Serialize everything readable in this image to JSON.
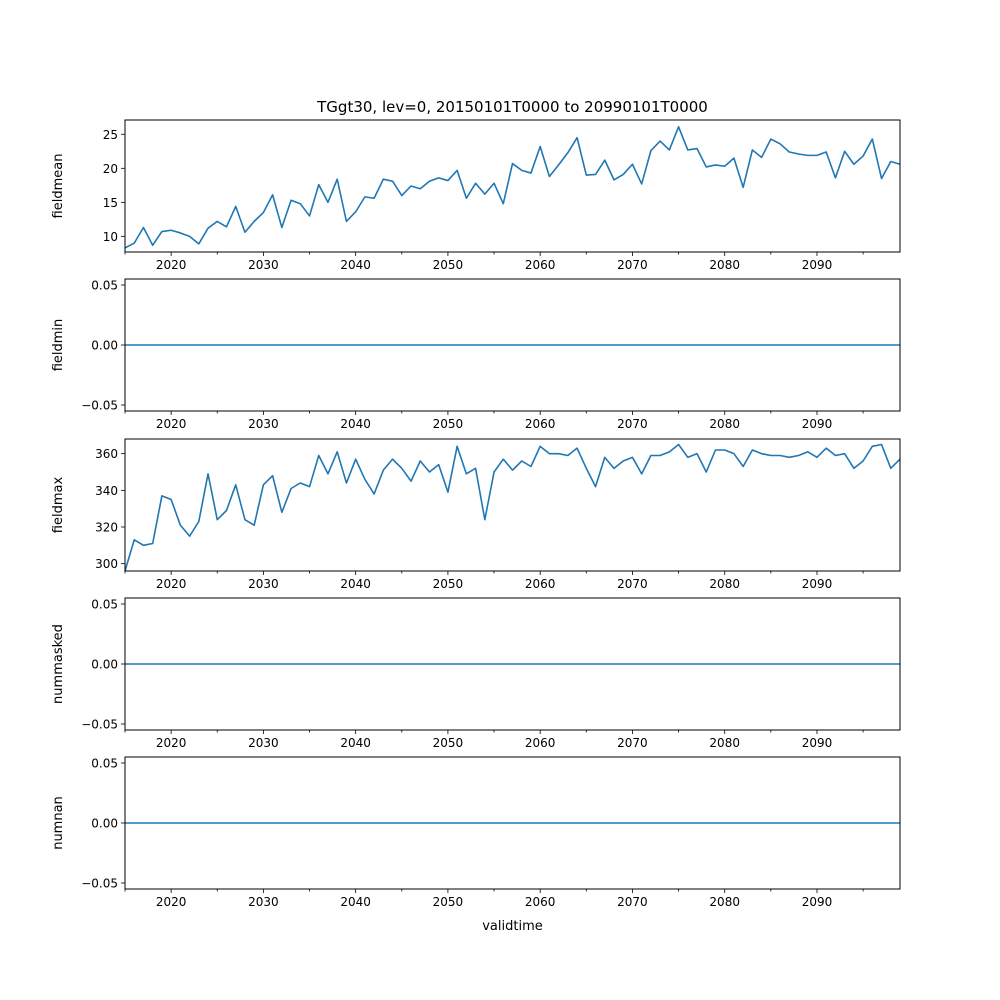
{
  "figure": {
    "title": "TGgt30, lev=0, 20150101T0000 to 20990101T0000",
    "xlabel": "validtime",
    "line_color": "#1f77b4"
  },
  "chart_data": [
    {
      "type": "line",
      "ylabel": "fieldmean",
      "xlim": [
        2015,
        2099
      ],
      "ylim": [
        7.7,
        27.1
      ],
      "yticks": [
        10,
        15,
        20,
        25
      ],
      "ytick_labels": [
        "10",
        "15",
        "20",
        "25"
      ],
      "xticks": [
        2020,
        2030,
        2040,
        2050,
        2060,
        2070,
        2080,
        2090
      ],
      "xtick_labels": [
        "2020",
        "2030",
        "2040",
        "2050",
        "2060",
        "2070",
        "2080",
        "2090"
      ],
      "x": [
        2015,
        2016,
        2017,
        2018,
        2019,
        2020,
        2021,
        2022,
        2023,
        2024,
        2025,
        2026,
        2027,
        2028,
        2029,
        2030,
        2031,
        2032,
        2033,
        2034,
        2035,
        2036,
        2037,
        2038,
        2039,
        2040,
        2041,
        2042,
        2043,
        2044,
        2045,
        2046,
        2047,
        2048,
        2049,
        2050,
        2051,
        2052,
        2053,
        2054,
        2055,
        2056,
        2057,
        2058,
        2059,
        2060,
        2061,
        2062,
        2063,
        2064,
        2065,
        2066,
        2067,
        2068,
        2069,
        2070,
        2071,
        2072,
        2073,
        2074,
        2075,
        2076,
        2077,
        2078,
        2079,
        2080,
        2081,
        2082,
        2083,
        2084,
        2085,
        2086,
        2087,
        2088,
        2089,
        2090,
        2091,
        2092,
        2093,
        2094,
        2095,
        2096,
        2097,
        2098,
        2099
      ],
      "values": [
        8.3,
        9.0,
        11.3,
        8.7,
        10.7,
        10.9,
        10.5,
        10.0,
        8.9,
        11.2,
        12.2,
        11.4,
        14.4,
        10.6,
        12.2,
        13.5,
        16.1,
        11.3,
        15.3,
        14.8,
        13.0,
        17.6,
        15.0,
        18.4,
        12.2,
        13.6,
        15.8,
        15.6,
        18.4,
        18.1,
        16.0,
        17.4,
        17.0,
        18.1,
        18.6,
        18.2,
        19.7,
        15.6,
        17.8,
        16.2,
        17.8,
        14.8,
        20.7,
        19.7,
        19.3,
        23.2,
        18.8,
        20.5,
        22.3,
        24.5,
        19.0,
        19.1,
        21.2,
        18.3,
        19.1,
        20.6,
        17.7,
        22.6,
        24.0,
        22.7,
        26.1,
        22.7,
        22.9,
        20.2,
        20.5,
        20.3,
        21.5,
        17.2,
        22.7,
        21.6,
        24.3,
        23.6,
        22.4,
        22.1,
        21.9,
        21.9,
        22.4,
        18.6,
        22.5,
        20.6,
        21.8,
        24.3,
        18.5,
        21.0,
        20.6
      ]
    },
    {
      "type": "line",
      "ylabel": "fieldmin",
      "xlim": [
        2015,
        2099
      ],
      "ylim": [
        -0.055,
        0.055
      ],
      "yticks": [
        -0.05,
        0.0,
        0.05
      ],
      "ytick_labels": [
        "−0.05",
        "0.00",
        "0.05"
      ],
      "xticks": [
        2020,
        2030,
        2040,
        2050,
        2060,
        2070,
        2080,
        2090
      ],
      "xtick_labels": [
        "2020",
        "2030",
        "2040",
        "2050",
        "2060",
        "2070",
        "2080",
        "2090"
      ],
      "x": [
        2015,
        2099
      ],
      "values": [
        0,
        0
      ]
    },
    {
      "type": "line",
      "ylabel": "fieldmax",
      "xlim": [
        2015,
        2099
      ],
      "ylim": [
        296,
        368
      ],
      "yticks": [
        300,
        320,
        340,
        360
      ],
      "ytick_labels": [
        "300",
        "320",
        "340",
        "360"
      ],
      "xticks": [
        2020,
        2030,
        2040,
        2050,
        2060,
        2070,
        2080,
        2090
      ],
      "xtick_labels": [
        "2020",
        "2030",
        "2040",
        "2050",
        "2060",
        "2070",
        "2080",
        "2090"
      ],
      "x": [
        2015,
        2016,
        2017,
        2018,
        2019,
        2020,
        2021,
        2022,
        2023,
        2024,
        2025,
        2026,
        2027,
        2028,
        2029,
        2030,
        2031,
        2032,
        2033,
        2034,
        2035,
        2036,
        2037,
        2038,
        2039,
        2040,
        2041,
        2042,
        2043,
        2044,
        2045,
        2046,
        2047,
        2048,
        2049,
        2050,
        2051,
        2052,
        2053,
        2054,
        2055,
        2056,
        2057,
        2058,
        2059,
        2060,
        2061,
        2062,
        2063,
        2064,
        2065,
        2066,
        2067,
        2068,
        2069,
        2070,
        2071,
        2072,
        2073,
        2074,
        2075,
        2076,
        2077,
        2078,
        2079,
        2080,
        2081,
        2082,
        2083,
        2084,
        2085,
        2086,
        2087,
        2088,
        2089,
        2090,
        2091,
        2092,
        2093,
        2094,
        2095,
        2096,
        2097,
        2098,
        2099
      ],
      "values": [
        296,
        313,
        310,
        311,
        337,
        335,
        321,
        315,
        323,
        349,
        324,
        329,
        343,
        324,
        321,
        343,
        348,
        328,
        341,
        344,
        342,
        359,
        349,
        361,
        344,
        357,
        346,
        338,
        351,
        357,
        352,
        345,
        356,
        350,
        354,
        339,
        364,
        349,
        352,
        324,
        350,
        357,
        351,
        356,
        353,
        364,
        360,
        360,
        359,
        363,
        352,
        342,
        358,
        352,
        356,
        358,
        349,
        359,
        359,
        361,
        365,
        358,
        360,
        350,
        362,
        362,
        360,
        353,
        362,
        360,
        359,
        359,
        358,
        359,
        361,
        358,
        363,
        359,
        360,
        352,
        356,
        364,
        365,
        352,
        357
      ]
    },
    {
      "type": "line",
      "ylabel": "nummasked",
      "xlim": [
        2015,
        2099
      ],
      "ylim": [
        -0.055,
        0.055
      ],
      "yticks": [
        -0.05,
        0.0,
        0.05
      ],
      "ytick_labels": [
        "−0.05",
        "0.00",
        "0.05"
      ],
      "xticks": [
        2020,
        2030,
        2040,
        2050,
        2060,
        2070,
        2080,
        2090
      ],
      "xtick_labels": [
        "2020",
        "2030",
        "2040",
        "2050",
        "2060",
        "2070",
        "2080",
        "2090"
      ],
      "x": [
        2015,
        2099
      ],
      "values": [
        0,
        0
      ]
    },
    {
      "type": "line",
      "ylabel": "numnan",
      "xlim": [
        2015,
        2099
      ],
      "ylim": [
        -0.055,
        0.055
      ],
      "yticks": [
        -0.05,
        0.0,
        0.05
      ],
      "ytick_labels": [
        "−0.05",
        "0.00",
        "0.05"
      ],
      "xticks": [
        2020,
        2030,
        2040,
        2050,
        2060,
        2070,
        2080,
        2090
      ],
      "xtick_labels": [
        "2020",
        "2030",
        "2040",
        "2050",
        "2060",
        "2070",
        "2080",
        "2090"
      ],
      "x": [
        2015,
        2099
      ],
      "values": [
        0,
        0
      ]
    }
  ]
}
